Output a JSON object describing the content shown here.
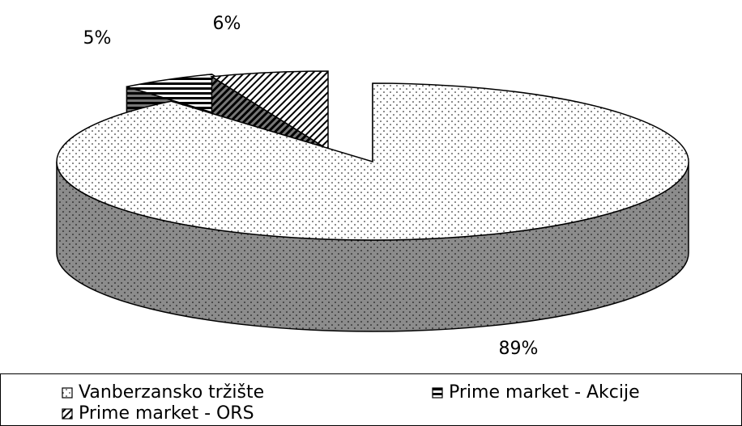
{
  "chart_data": {
    "type": "pie3d",
    "categories": [
      "Vanberzansko tržište",
      "Prime market - Akcije",
      "Prime market - ORS"
    ],
    "values": [
      89,
      5,
      6
    ],
    "value_labels": [
      "89%",
      "5%",
      "6%"
    ],
    "legend": "bottom"
  }
}
